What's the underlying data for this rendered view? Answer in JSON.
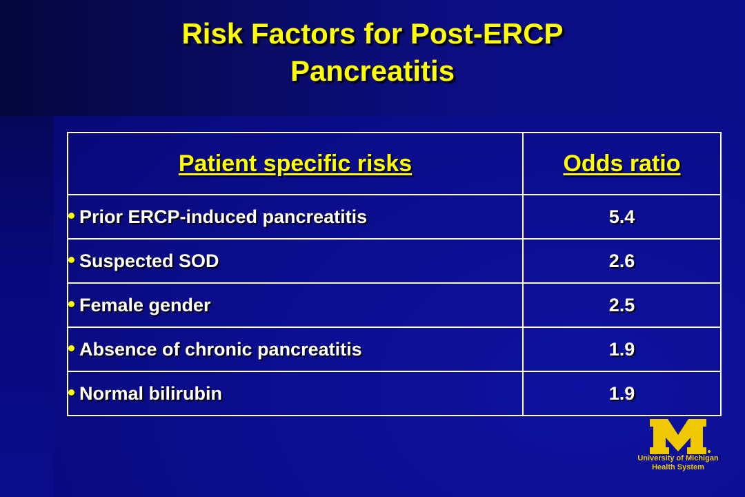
{
  "slide": {
    "title_line1": "Risk Factors for Post-ERCP",
    "title_line2": "Pancreatitis"
  },
  "table": {
    "headers": [
      "Patient specific risks",
      "Odds ratio"
    ],
    "rows": [
      {
        "risk": "Prior ERCP-induced pancreatitis",
        "odds": "5.4"
      },
      {
        "risk": "Suspected SOD",
        "odds": "2.6"
      },
      {
        "risk": "Female gender",
        "odds": "2.5"
      },
      {
        "risk": "Absence of chronic pancreatitis",
        "odds": "1.9"
      },
      {
        "risk": "Normal bilirubin",
        "odds": "1.9"
      }
    ]
  },
  "logo": {
    "line1": "University of Michigan",
    "line2": "Health System",
    "color": "#f0c800"
  },
  "colors": {
    "background": "#0a0c8c",
    "title": "#ffff00",
    "text": "#ffffff"
  },
  "icons": {
    "bullet": "round-bullet-icon",
    "logo": "block-m-logo-icon"
  }
}
